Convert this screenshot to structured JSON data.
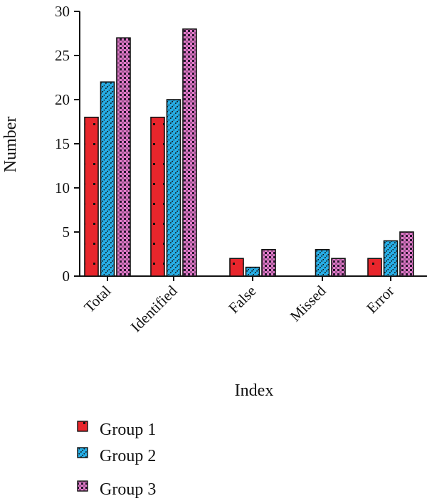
{
  "chart_data": {
    "type": "bar",
    "title": "",
    "xlabel": "Index",
    "ylabel": "Number",
    "ylim": [
      0,
      30
    ],
    "yticks": [
      0,
      5,
      10,
      15,
      20,
      25,
      30
    ],
    "categories": [
      "Total",
      "Identified",
      "False",
      "Missed",
      "Error"
    ],
    "series": [
      {
        "name": "Group 1",
        "values": [
          18,
          18,
          2,
          0,
          2
        ],
        "color": "#e8262c",
        "pattern": "dots"
      },
      {
        "name": "Group 2",
        "values": [
          22,
          20,
          1,
          3,
          4
        ],
        "color": "#27aee6",
        "pattern": "diagonal-stripes"
      },
      {
        "name": "Group 3",
        "values": [
          27,
          28,
          3,
          2,
          5
        ],
        "color": "#e07ac8",
        "pattern": "checker"
      }
    ],
    "grid": false,
    "legend": {
      "position": "bottom-left",
      "orientation": "vertical"
    }
  }
}
